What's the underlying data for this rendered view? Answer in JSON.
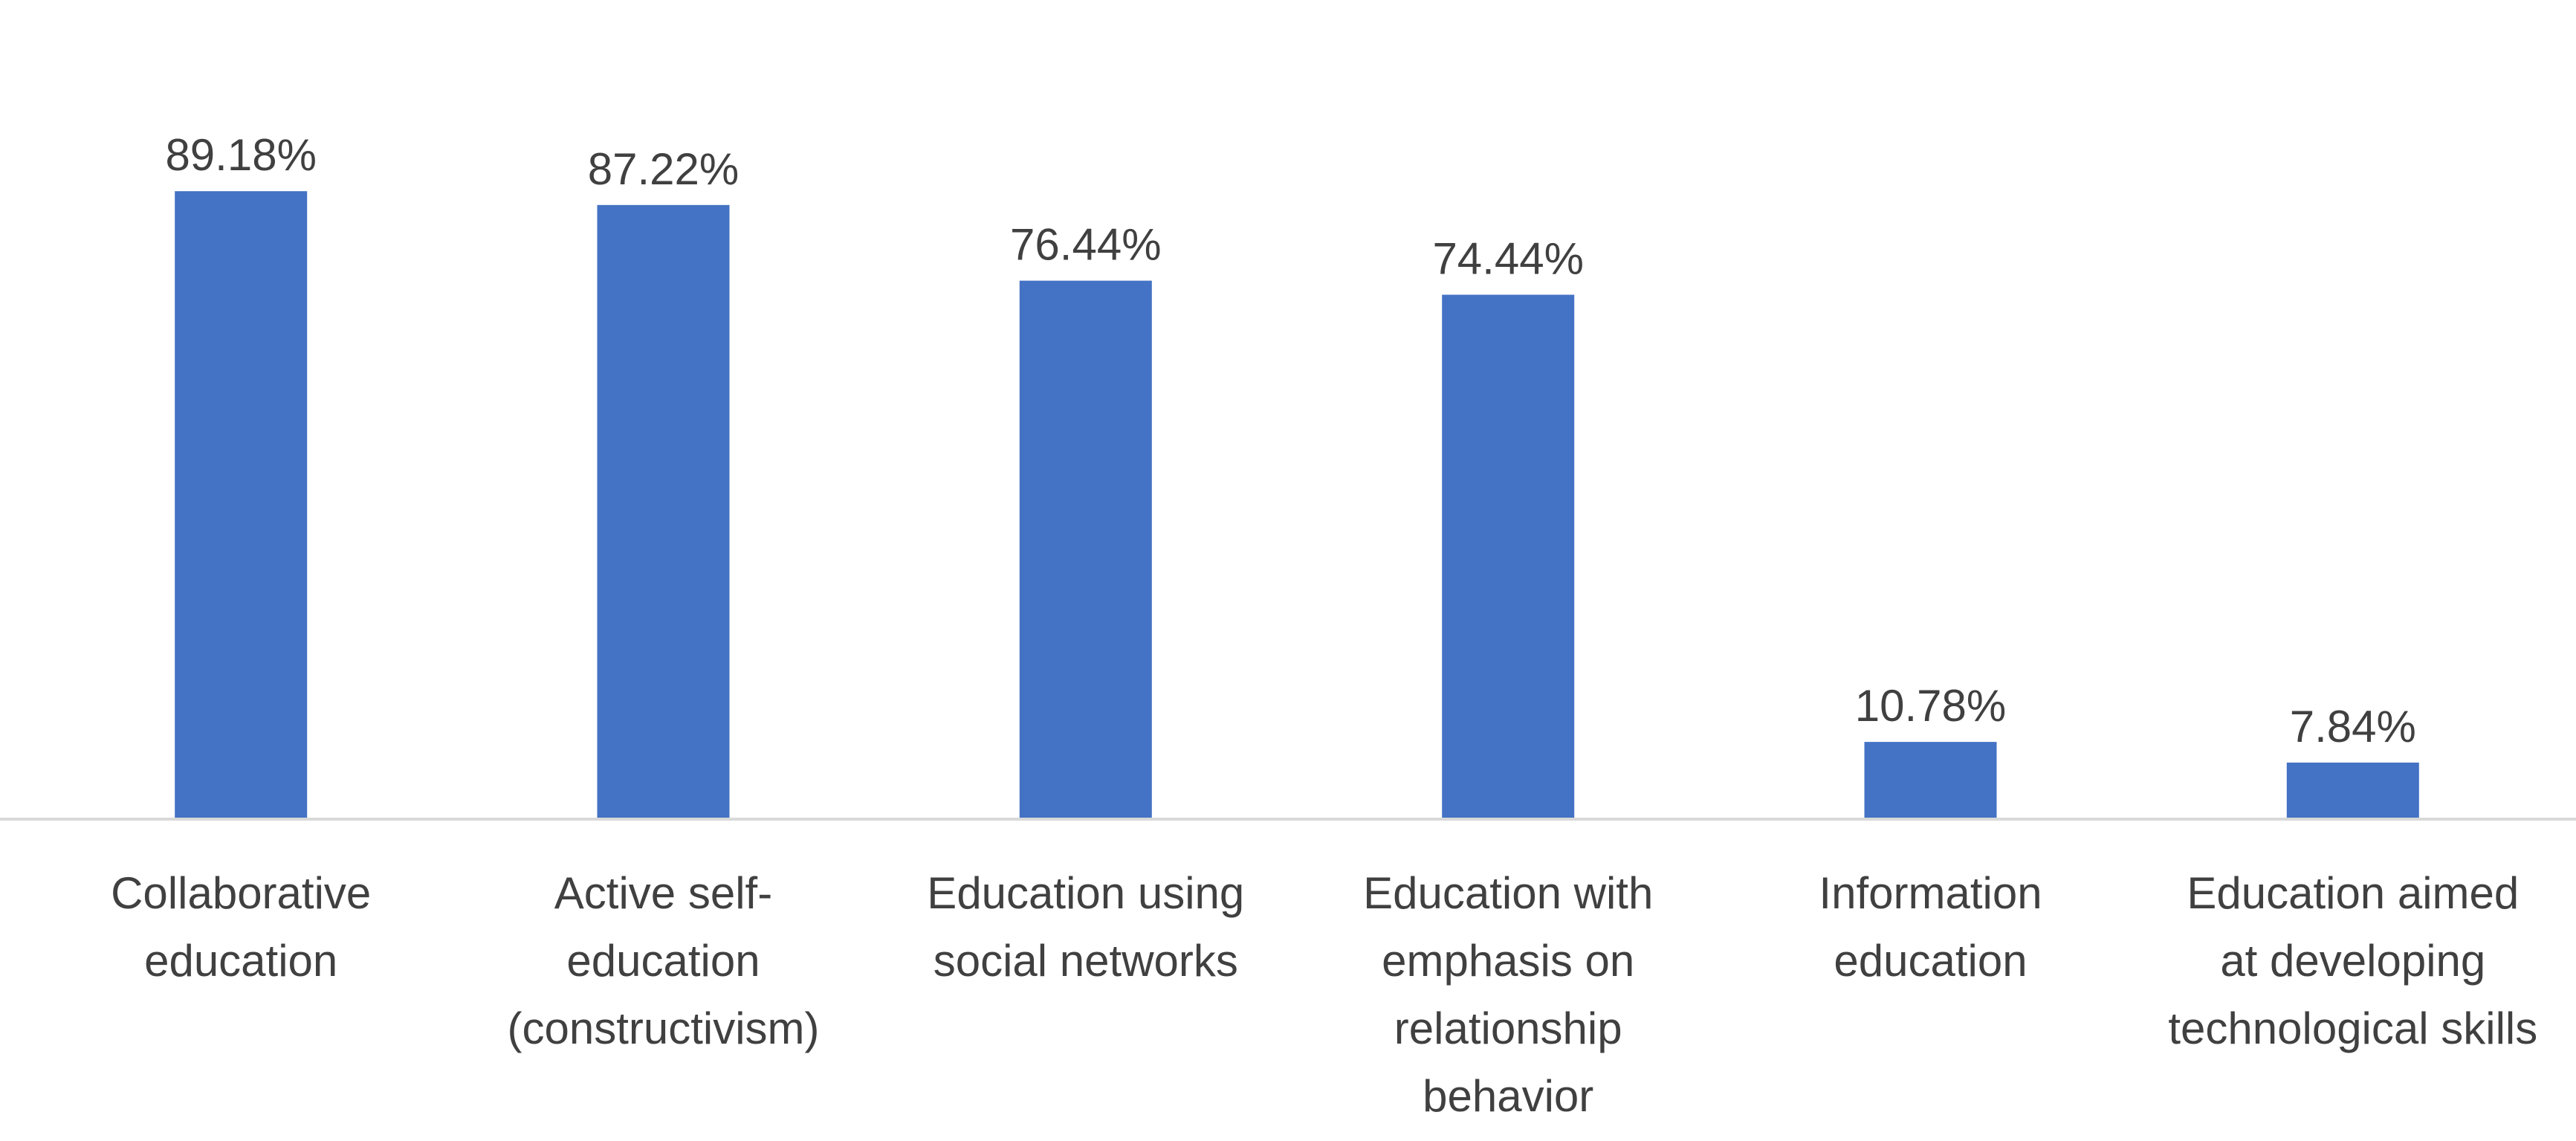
{
  "chart_data": {
    "type": "bar",
    "title": "",
    "xlabel": "",
    "ylabel": "",
    "categories": [
      [
        "Collaborative",
        "education"
      ],
      [
        "Active self-",
        "education",
        "(constructivism)"
      ],
      [
        "Education using",
        "social networks"
      ],
      [
        "Education with",
        "emphasis on",
        "relationship",
        "behavior"
      ],
      [
        "Information",
        "education"
      ],
      [
        "Education aimed",
        "at developing",
        "technological skills"
      ]
    ],
    "values": [
      89.18,
      87.22,
      76.44,
      74.44,
      10.78,
      7.84
    ],
    "data_labels": [
      "89.18%",
      "87.22%",
      "76.44%",
      "74.44%",
      "10.78%",
      "7.84%"
    ],
    "ylim": [
      0,
      100
    ],
    "grid": false,
    "legend": "none",
    "bar_color": "#4472C4",
    "axis_color": "#D9D9D9",
    "text_color": "#404040"
  }
}
